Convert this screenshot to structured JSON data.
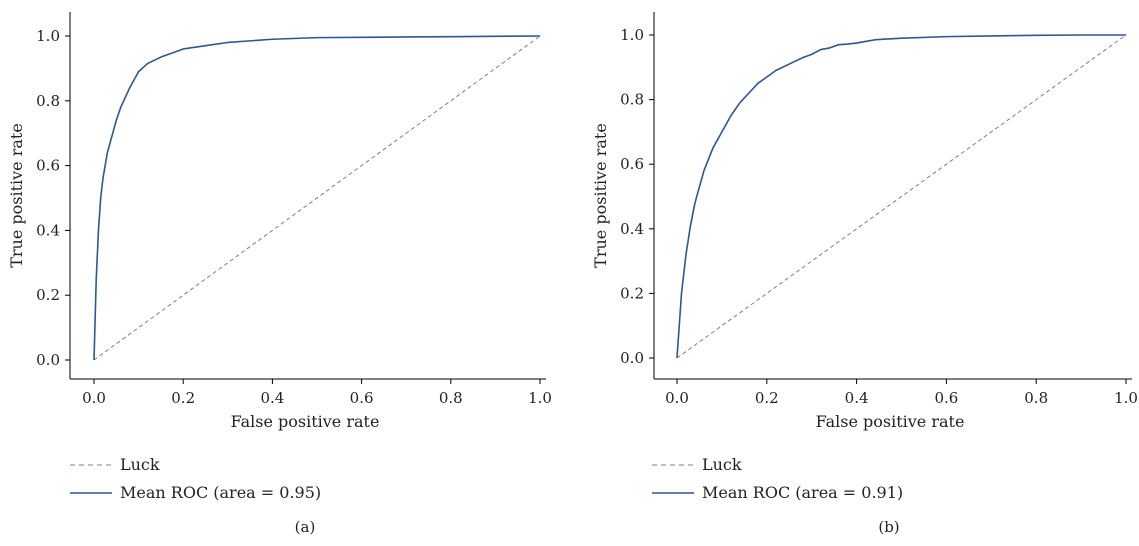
{
  "chart_data": [
    {
      "type": "line",
      "panel_label": "(a)",
      "xlabel": "False positive rate",
      "ylabel": "True positive rate",
      "xlim": [
        0,
        1
      ],
      "ylim": [
        0,
        1
      ],
      "xticks": [
        "0.0",
        "0.2",
        "0.4",
        "0.6",
        "0.8",
        "1.0"
      ],
      "yticks": [
        "0.0",
        "0.2",
        "0.4",
        "0.6",
        "0.8",
        "1.0"
      ],
      "grid": false,
      "legend_placement": "below",
      "colors": {
        "roc": "#2b5797",
        "luck": "#808080"
      },
      "series": [
        {
          "name": "Luck",
          "style": "dashed",
          "x": [
            0,
            1
          ],
          "y": [
            0,
            1
          ]
        },
        {
          "name": "Mean ROC (area = 0.95)",
          "style": "solid",
          "x": [
            0,
            0.005,
            0.01,
            0.015,
            0.02,
            0.03,
            0.04,
            0.05,
            0.06,
            0.08,
            0.1,
            0.12,
            0.15,
            0.18,
            0.2,
            0.25,
            0.3,
            0.4,
            0.5,
            0.6,
            0.7,
            0.8,
            0.9,
            1.0
          ],
          "y": [
            0,
            0.25,
            0.4,
            0.5,
            0.56,
            0.64,
            0.69,
            0.74,
            0.78,
            0.84,
            0.89,
            0.915,
            0.935,
            0.95,
            0.96,
            0.97,
            0.98,
            0.99,
            0.995,
            0.996,
            0.997,
            0.998,
            0.999,
            1.0
          ]
        }
      ]
    },
    {
      "type": "line",
      "panel_label": "(b)",
      "xlabel": "False positive rate",
      "ylabel": "True positive rate",
      "xlim": [
        0,
        1
      ],
      "ylim": [
        0,
        1
      ],
      "xticks": [
        "0.0",
        "0.2",
        "0.4",
        "0.6",
        "0.8",
        "1.0"
      ],
      "yticks": [
        "0.0",
        "0.2",
        "0.4",
        "0.6",
        "0.8",
        "1.0"
      ],
      "grid": false,
      "legend_placement": "below",
      "colors": {
        "roc": "#2b5797",
        "luck": "#808080"
      },
      "series": [
        {
          "name": "Luck",
          "style": "dashed",
          "x": [
            0,
            1
          ],
          "y": [
            0,
            1
          ]
        },
        {
          "name": "Mean ROC (area = 0.91)",
          "style": "solid",
          "x": [
            0,
            0.01,
            0.02,
            0.03,
            0.04,
            0.06,
            0.08,
            0.1,
            0.12,
            0.14,
            0.16,
            0.18,
            0.2,
            0.22,
            0.25,
            0.28,
            0.3,
            0.32,
            0.34,
            0.36,
            0.38,
            0.4,
            0.42,
            0.44,
            0.46,
            0.5,
            0.6,
            0.7,
            0.8,
            0.9,
            1.0
          ],
          "y": [
            0,
            0.2,
            0.32,
            0.41,
            0.48,
            0.58,
            0.65,
            0.7,
            0.75,
            0.79,
            0.82,
            0.85,
            0.87,
            0.89,
            0.91,
            0.93,
            0.94,
            0.955,
            0.96,
            0.97,
            0.972,
            0.975,
            0.98,
            0.985,
            0.987,
            0.99,
            0.995,
            0.997,
            0.999,
            1.0,
            1.0
          ]
        }
      ]
    }
  ]
}
